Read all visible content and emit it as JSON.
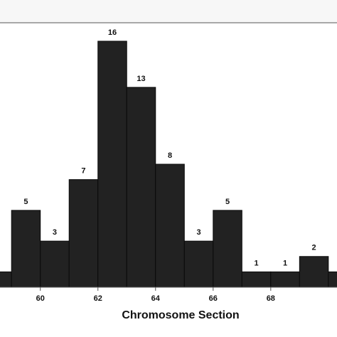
{
  "chart_data": {
    "type": "bar",
    "title": "",
    "xlabel": "Chromosome Section",
    "ylabel": "",
    "bins": [
      {
        "x0": 57,
        "x1": 59,
        "value": 1
      },
      {
        "x0": 59,
        "x1": 60,
        "value": 5
      },
      {
        "x0": 60,
        "x1": 61,
        "value": 3
      },
      {
        "x0": 61,
        "x1": 62,
        "value": 7
      },
      {
        "x0": 62,
        "x1": 63,
        "value": 16
      },
      {
        "x0": 63,
        "x1": 64,
        "value": 13
      },
      {
        "x0": 64,
        "x1": 65,
        "value": 8
      },
      {
        "x0": 65,
        "x1": 66,
        "value": 3
      },
      {
        "x0": 66,
        "x1": 67,
        "value": 5
      },
      {
        "x0": 67,
        "x1": 68,
        "value": 1
      },
      {
        "x0": 68,
        "x1": 69,
        "value": 1
      },
      {
        "x0": 69,
        "x1": 70,
        "value": 2
      },
      {
        "x0": 70,
        "x1": 71,
        "value": 1
      }
    ],
    "data_labels": [
      "5",
      "3",
      "7",
      "16",
      "13",
      "8",
      "3",
      "5",
      "1",
      "1",
      "2"
    ],
    "x_ticks": [
      60,
      62,
      64,
      66,
      68
    ],
    "xlim": [
      58.6,
      70.3
    ],
    "ylim": [
      0,
      17.2
    ],
    "grid": false,
    "bar_color": "#222222",
    "background_color": "#ffffff"
  }
}
